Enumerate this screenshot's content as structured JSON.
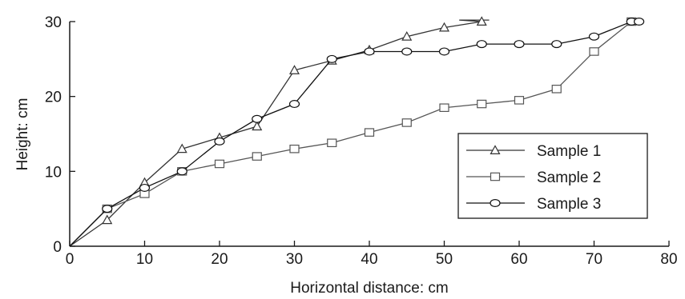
{
  "chart_data": {
    "type": "line",
    "title": "",
    "xlabel": "Horizontal distance: cm",
    "ylabel": "Height: cm",
    "xlim": [
      0,
      80
    ],
    "ylim": [
      0,
      30
    ],
    "xticks": [
      "0",
      "10",
      "20",
      "30",
      "40",
      "50",
      "60",
      "70",
      "80"
    ],
    "yticks": [
      "0",
      "10",
      "20",
      "30"
    ],
    "grid": false,
    "legend_position": "right",
    "series": [
      {
        "name": "Sample 1",
        "marker": "triangle",
        "color": "#333333",
        "points": [
          [
            0,
            0
          ],
          [
            5,
            3.5
          ],
          [
            10,
            8.5
          ],
          [
            15,
            13
          ],
          [
            20,
            14.5
          ],
          [
            25,
            16
          ],
          [
            30,
            23.5
          ],
          [
            35,
            24.8
          ],
          [
            40,
            26.2
          ],
          [
            45,
            28
          ],
          [
            50,
            29.2
          ],
          [
            55,
            30
          ],
          [
            52,
            30.2
          ],
          [
            56,
            30.2
          ]
        ]
      },
      {
        "name": "Sample 2",
        "marker": "square",
        "color": "#555555",
        "points": [
          [
            0,
            0
          ],
          [
            5,
            5
          ],
          [
            10,
            7
          ],
          [
            15,
            10
          ],
          [
            20,
            11
          ],
          [
            25,
            12
          ],
          [
            30,
            13
          ],
          [
            35,
            13.8
          ],
          [
            40,
            15.2
          ],
          [
            45,
            16.5
          ],
          [
            50,
            18.5
          ],
          [
            55,
            19
          ],
          [
            60,
            19.5
          ],
          [
            65,
            21
          ],
          [
            70,
            26
          ],
          [
            75,
            30
          ]
        ]
      },
      {
        "name": "Sample 3",
        "marker": "circle",
        "color": "#111111",
        "points": [
          [
            0,
            0
          ],
          [
            5,
            5
          ],
          [
            10,
            7.8
          ],
          [
            15,
            10
          ],
          [
            20,
            14
          ],
          [
            25,
            17
          ],
          [
            30,
            19
          ],
          [
            35,
            25
          ],
          [
            40,
            26
          ],
          [
            45,
            26
          ],
          [
            50,
            26
          ],
          [
            55,
            27
          ],
          [
            60,
            27
          ],
          [
            65,
            27
          ],
          [
            70,
            28
          ],
          [
            75,
            30
          ],
          [
            76,
            30
          ]
        ]
      }
    ]
  }
}
